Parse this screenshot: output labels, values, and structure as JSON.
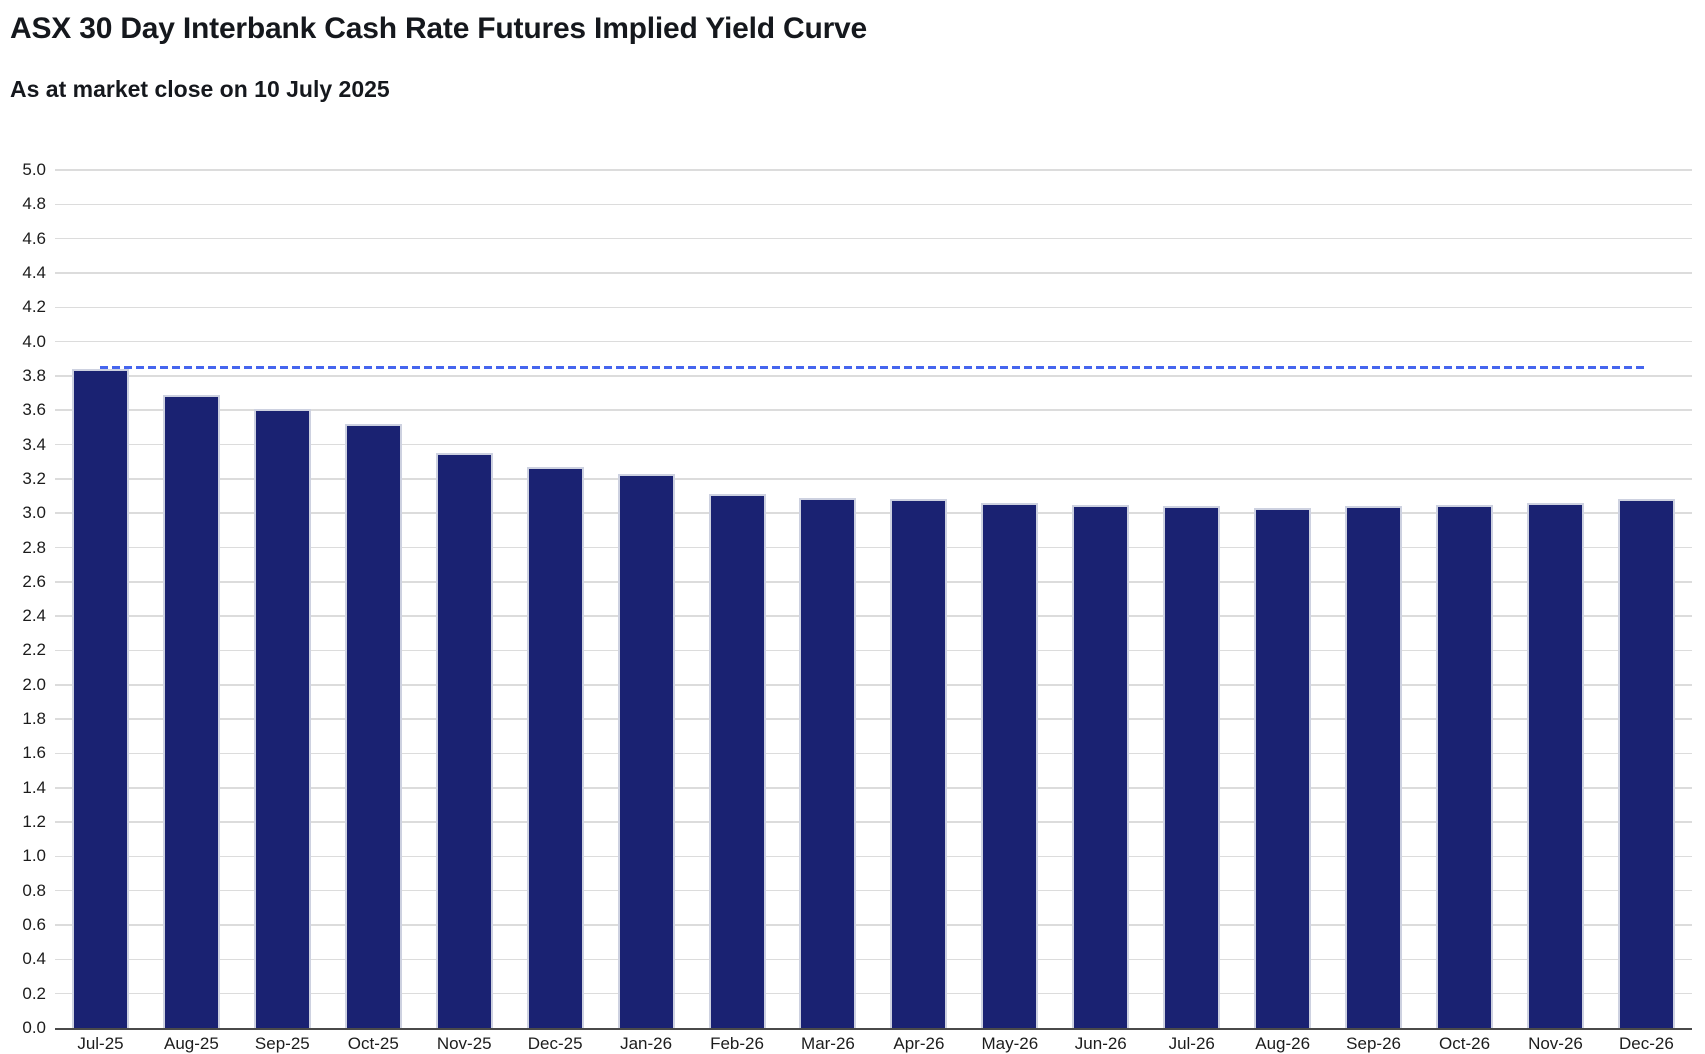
{
  "header": {
    "title": "ASX 30 Day Interbank Cash Rate Futures Implied Yield Curve",
    "subtitle": "As at market close on 10 July 2025"
  },
  "chart_data": {
    "type": "bar",
    "title": "ASX 30 Day Interbank Cash Rate Futures Implied Yield Curve",
    "subtitle": "As at market close on 10 July 2025",
    "categories": [
      "Jul-25",
      "Aug-25",
      "Sep-25",
      "Oct-25",
      "Nov-25",
      "Dec-25",
      "Jan-26",
      "Feb-26",
      "Mar-26",
      "Apr-26",
      "May-26",
      "Jun-26",
      "Jul-26",
      "Aug-26",
      "Sep-26",
      "Oct-26",
      "Nov-26",
      "Dec-26"
    ],
    "values": [
      3.84,
      3.69,
      3.61,
      3.52,
      3.35,
      3.27,
      3.23,
      3.11,
      3.09,
      3.08,
      3.06,
      3.05,
      3.04,
      3.03,
      3.04,
      3.05,
      3.06,
      3.08
    ],
    "reference_line": {
      "value": 3.85,
      "style": "dashed"
    },
    "xlabel": "",
    "ylabel": "",
    "ylim": [
      0,
      5
    ],
    "ytick_step": 0.2,
    "yticks": [
      "5.0",
      "4.8",
      "4.6",
      "4.4",
      "4.2",
      "4.0",
      "3.8",
      "3.6",
      "3.4",
      "3.2",
      "3.0",
      "2.8",
      "2.6",
      "2.4",
      "2.2",
      "2.0",
      "1.8",
      "1.6",
      "1.4",
      "1.2",
      "1.0",
      "0.8",
      "0.6",
      "0.4",
      "0.2",
      "0.0"
    ],
    "grid": true,
    "legend": false,
    "colors": {
      "bar": "#1a2272",
      "bar_border": "#cdd1e0",
      "reference_line": "#4565ee",
      "grid": "#dcdcdc",
      "axis": "#4a4a4a",
      "text": "#15181d",
      "background": "#ffffff"
    }
  }
}
